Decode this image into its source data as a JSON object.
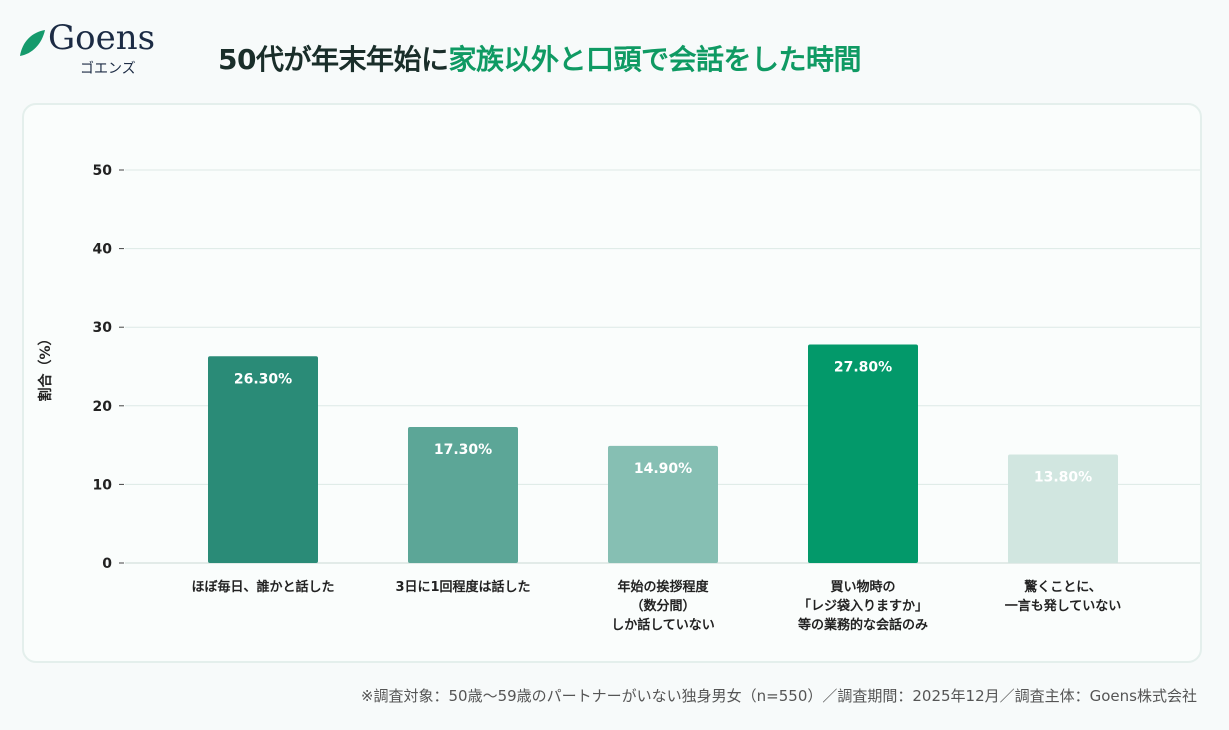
{
  "logo": {
    "text": "Goens",
    "kana": "ゴエンズ"
  },
  "header": {
    "title_part1": "50代が年末年始に",
    "title_part2": "家族以外と口頭で会話をした時間"
  },
  "footer": {
    "note": "※調査対象：50歳〜59歳のパートナーがいない独身男女（n=550）／調査期間：2025年12月／調査主体：Goens株式会社"
  },
  "colors": {
    "accent": "#0f9a63",
    "text": "#1a2e2a"
  },
  "chart_data": {
    "type": "bar",
    "categories": [
      [
        "ほぼ毎日、誰かと話した"
      ],
      [
        "3日に1回程度は話した"
      ],
      [
        "年始の挨拶程度",
        "（数分間）",
        "しか話していない"
      ],
      [
        "買い物時の",
        "「レジ袋入りますか」",
        "等の業務的な会話のみ"
      ],
      [
        "驚くことに、",
        "一言も発していない"
      ]
    ],
    "values": [
      26.3,
      17.3,
      14.9,
      27.8,
      13.8
    ],
    "data_labels": [
      "26.30%",
      "17.30%",
      "14.90%",
      "27.80%",
      "13.80%"
    ],
    "bar_colors": [
      "#2a8b77",
      "#5ca697",
      "#86bfb3",
      "#03996a",
      "#d1e6e0"
    ],
    "label_colors": [
      "#ffffff",
      "#ffffff",
      "#ffffff",
      "#ffffff",
      "#ffffff"
    ],
    "ylabel": "割合（%）",
    "ylim": [
      0,
      50
    ],
    "yticks": [
      0,
      10,
      20,
      30,
      40,
      50
    ],
    "grid": true
  }
}
